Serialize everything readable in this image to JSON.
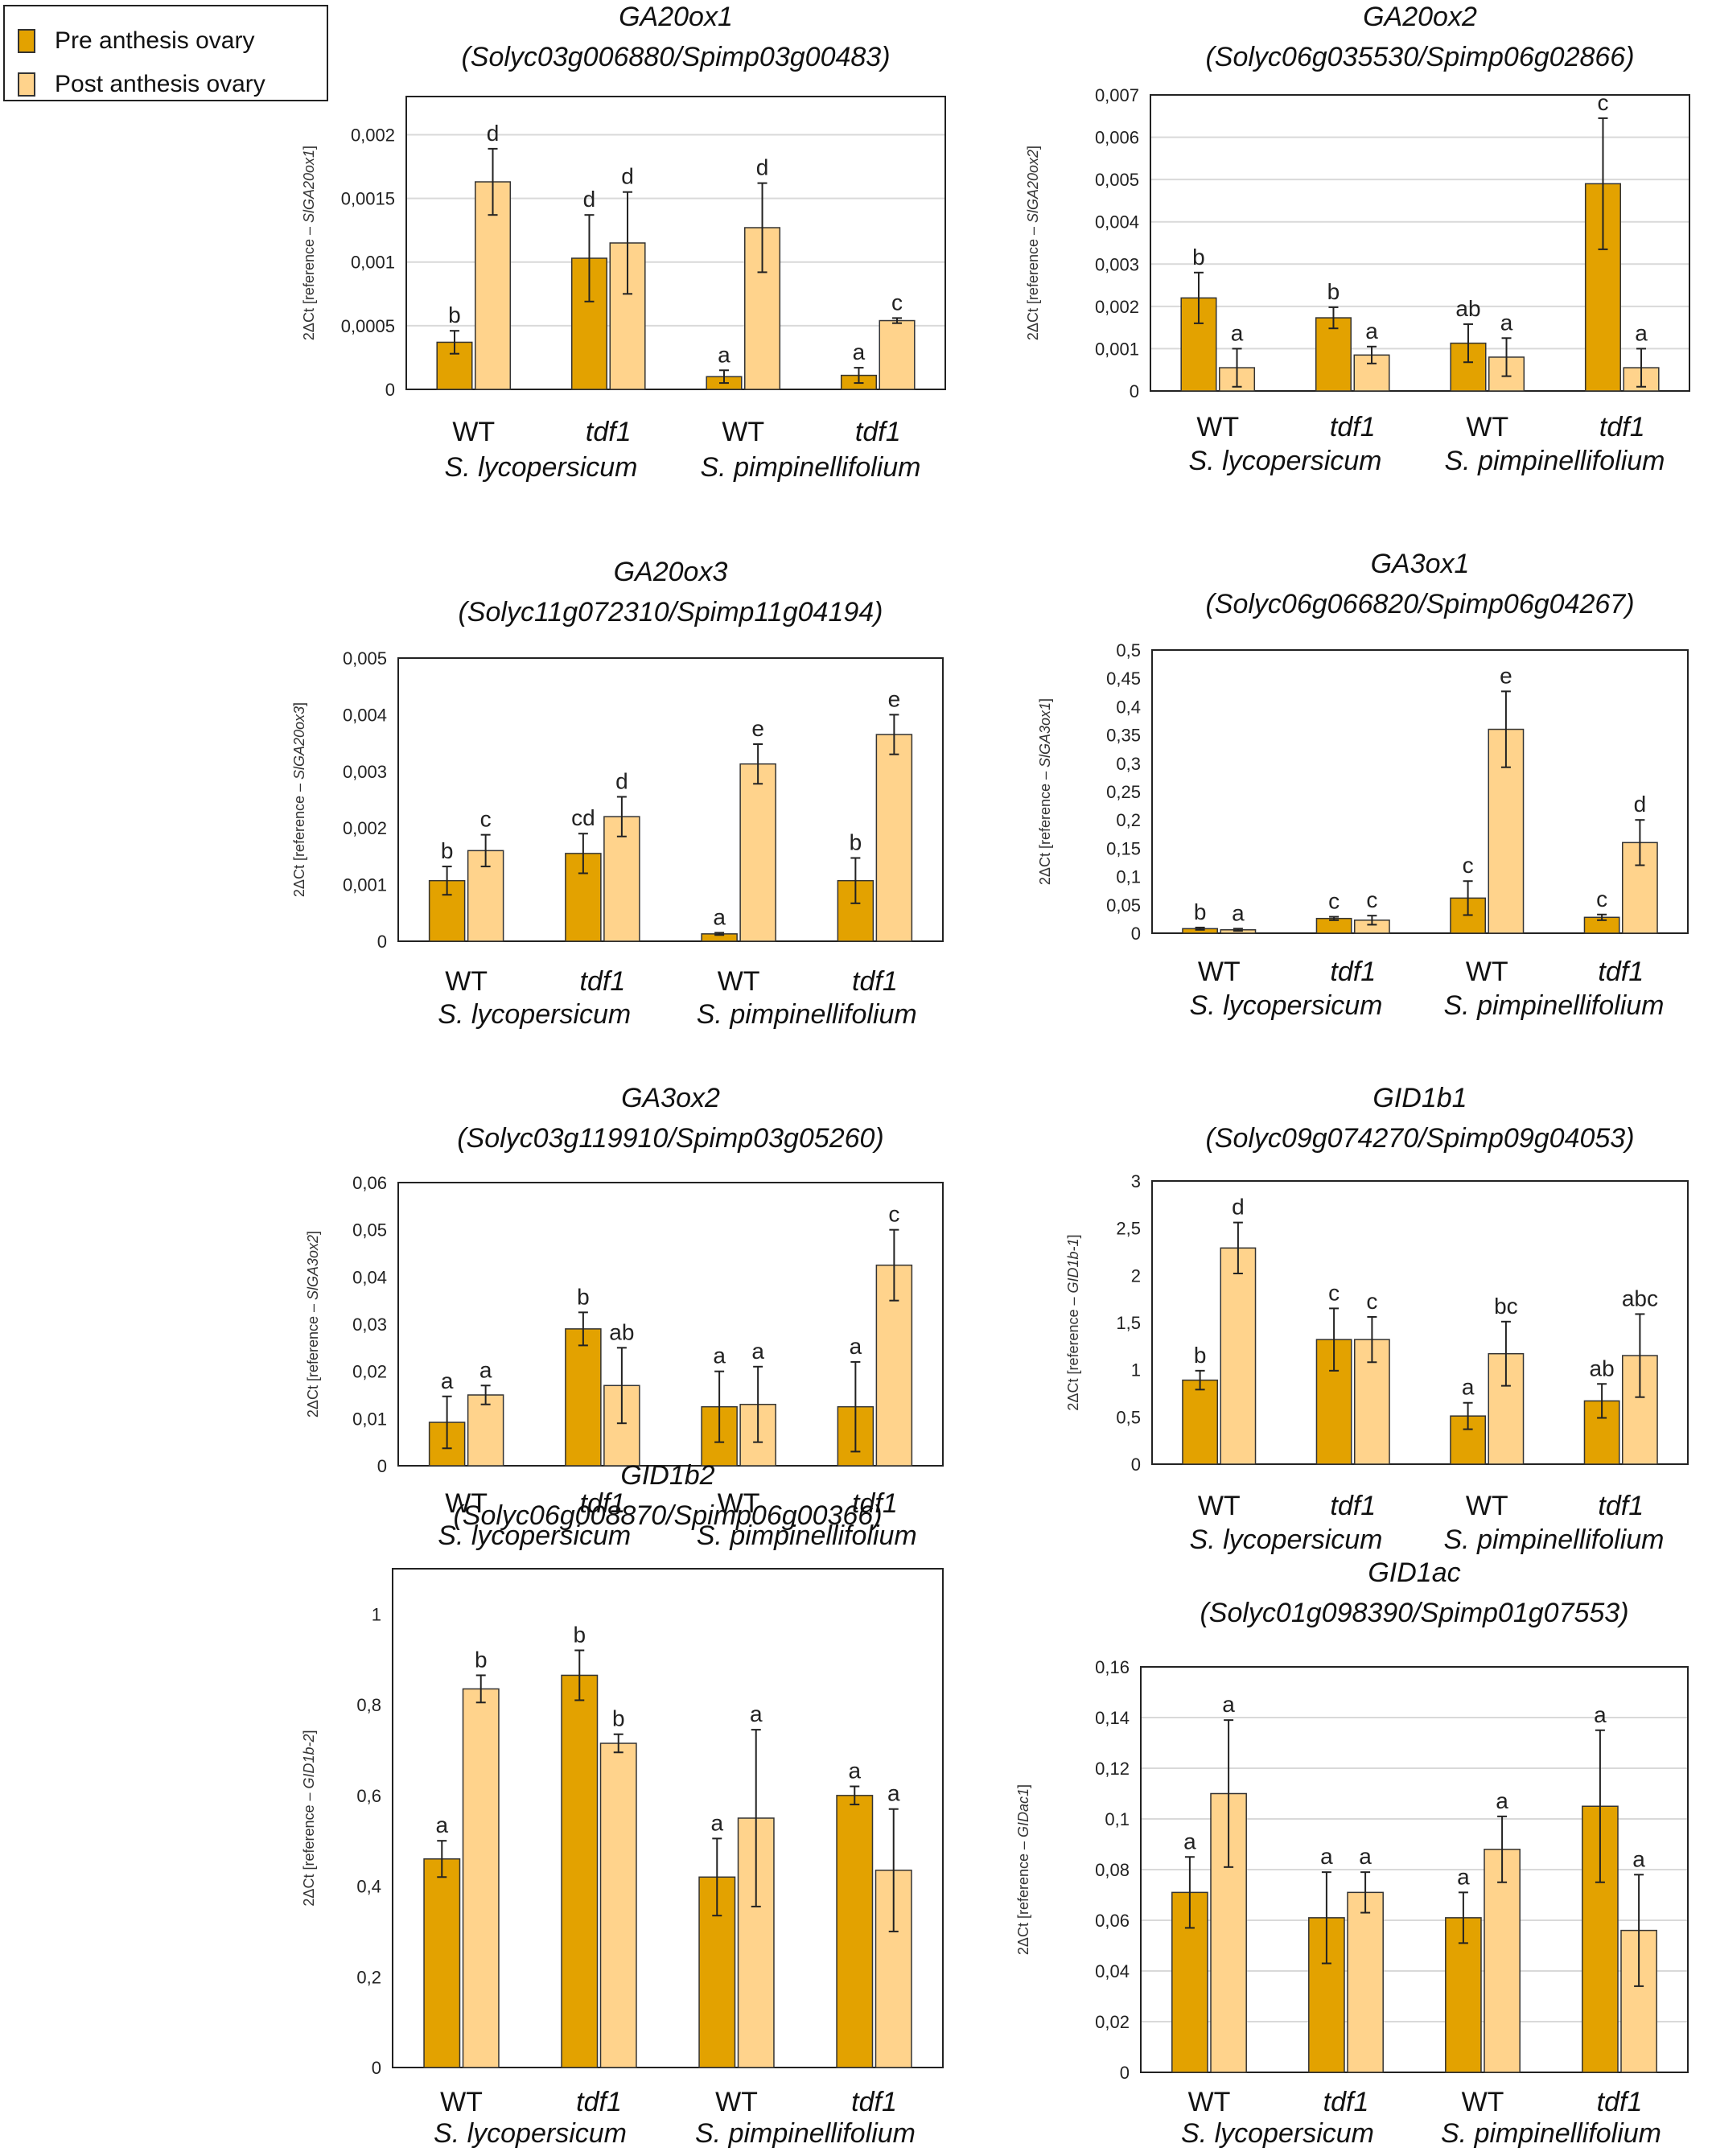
{
  "legend": {
    "items": [
      {
        "label": "Pre anthesis ovary",
        "color": "#E3A200"
      },
      {
        "label": "Post anthesis ovary",
        "color": "#FFD38C"
      }
    ]
  },
  "colors": {
    "pre": "#E3A200",
    "post": "#FFD38C",
    "edge": "#333333",
    "grid": "#d9d9d9"
  },
  "chart_data": [
    {
      "type": "bar",
      "title": "GA20ox1",
      "subtitle": "(Solyc03g006880/Spimp03g00483)",
      "ylabel_prefix": "2ΔCt [reference – ",
      "ylabel_gene": "SlGA20ox1",
      "ylabel_suffix": "]",
      "ylim": [
        0,
        0.0023
      ],
      "ticks": [
        "0",
        "0,0005",
        "0,001",
        "0,0015",
        "0,002"
      ],
      "tick_values": [
        0,
        0.0005,
        0.001,
        0.0015,
        0.002
      ],
      "grid": true,
      "categories": [
        "WT",
        "tdf1",
        "WT",
        "tdf1"
      ],
      "species": [
        "S. lycopersicum",
        "S. pimpinellifolium"
      ],
      "series": [
        {
          "name": "Pre anthesis ovary",
          "values": [
            0.00037,
            0.00103,
            0.0001,
            0.00011
          ],
          "errors": [
            9e-05,
            0.00034,
            5e-05,
            6e-05
          ],
          "letters": [
            "b",
            "d",
            "a",
            "a"
          ]
        },
        {
          "name": "Post anthesis ovary",
          "values": [
            0.00163,
            0.00115,
            0.00127,
            0.00054
          ],
          "errors": [
            0.00026,
            0.0004,
            0.00035,
            2e-05
          ],
          "letters": [
            "d",
            "d",
            "d",
            "c"
          ]
        }
      ]
    },
    {
      "type": "bar",
      "title": "GA20ox2",
      "subtitle": "(Solyc06g035530/Spimp06g02866)",
      "ylabel_prefix": "2ΔCt [reference – ",
      "ylabel_gene": "SlGA20ox2",
      "ylabel_suffix": "]",
      "ylim": [
        0,
        0.007
      ],
      "ticks": [
        "0",
        "0,001",
        "0,002",
        "0,003",
        "0,004",
        "0,005",
        "0,006",
        "0,007"
      ],
      "tick_values": [
        0,
        0.001,
        0.002,
        0.003,
        0.004,
        0.005,
        0.006,
        0.007
      ],
      "grid": true,
      "categories": [
        "WT",
        "tdf1",
        "WT",
        "tdf1"
      ],
      "species": [
        "S. lycopersicum",
        "S. pimpinellifolium"
      ],
      "series": [
        {
          "name": "Pre anthesis ovary",
          "values": [
            0.0022,
            0.00173,
            0.00113,
            0.0049
          ],
          "errors": [
            0.0006,
            0.00025,
            0.00045,
            0.00155
          ],
          "letters": [
            "b",
            "b",
            "ab",
            "c"
          ]
        },
        {
          "name": "Post anthesis ovary",
          "values": [
            0.00055,
            0.00085,
            0.0008,
            0.00055
          ],
          "errors": [
            0.00045,
            0.0002,
            0.00045,
            0.00045
          ],
          "letters": [
            "a",
            "a",
            "a",
            "a"
          ]
        }
      ]
    },
    {
      "type": "bar",
      "title": "GA20ox3",
      "subtitle": "(Solyc11g072310/Spimp11g04194)",
      "ylabel_prefix": "2ΔCt [reference – ",
      "ylabel_gene": "SlGA20ox3",
      "ylabel_suffix": "]",
      "ylim": [
        0,
        0.005
      ],
      "ticks": [
        "0",
        "0,001",
        "0,002",
        "0,003",
        "0,004",
        "0,005"
      ],
      "tick_values": [
        0,
        0.001,
        0.002,
        0.003,
        0.004,
        0.005
      ],
      "grid": false,
      "categories": [
        "WT",
        "tdf1",
        "WT",
        "tdf1"
      ],
      "species": [
        "S. lycopersicum",
        "S. pimpinellifolium"
      ],
      "series": [
        {
          "name": "Pre anthesis ovary",
          "values": [
            0.00107,
            0.00155,
            0.00013,
            0.00107
          ],
          "errors": [
            0.00025,
            0.00035,
            2e-05,
            0.0004
          ],
          "letters": [
            "b",
            "cd",
            "a",
            "b"
          ]
        },
        {
          "name": "Post anthesis ovary",
          "values": [
            0.0016,
            0.0022,
            0.00313,
            0.00365
          ],
          "errors": [
            0.00028,
            0.00035,
            0.00035,
            0.00035
          ],
          "letters": [
            "c",
            "d",
            "e",
            "e"
          ]
        }
      ]
    },
    {
      "type": "bar",
      "title": "GA3ox1",
      "subtitle": "(Solyc06g066820/Spimp06g04267)",
      "ylabel_prefix": "2ΔCt [reference – ",
      "ylabel_gene": "SlGA3ox1",
      "ylabel_suffix": "]",
      "ylim": [
        0,
        0.5
      ],
      "ticks": [
        "0",
        "0,05",
        "0,1",
        "0,15",
        "0,2",
        "0,25",
        "0,3",
        "0,35",
        "0,4",
        "0,45",
        "0,5"
      ],
      "tick_values": [
        0,
        0.05,
        0.1,
        0.15,
        0.2,
        0.25,
        0.3,
        0.35,
        0.4,
        0.45,
        0.5
      ],
      "grid": false,
      "categories": [
        "WT",
        "tdf1",
        "WT",
        "tdf1"
      ],
      "species": [
        "S. lycopersicum",
        "S. pimpinellifolium"
      ],
      "series": [
        {
          "name": "Pre anthesis ovary",
          "values": [
            0.008,
            0.026,
            0.062,
            0.028
          ],
          "errors": [
            0.002,
            0.003,
            0.03,
            0.005
          ],
          "letters": [
            "b",
            "c",
            "c",
            "c"
          ]
        },
        {
          "name": "Post anthesis ovary",
          "values": [
            0.006,
            0.023,
            0.36,
            0.16
          ],
          "errors": [
            0.002,
            0.008,
            0.067,
            0.04
          ],
          "letters": [
            "a",
            "c",
            "e",
            "d"
          ]
        }
      ]
    },
    {
      "type": "bar",
      "title": "GA3ox2",
      "subtitle": "(Solyc03g119910/Spimp03g05260)",
      "ylabel_prefix": "2ΔCt [reference – ",
      "ylabel_gene": "SlGA3ox2",
      "ylabel_suffix": "]",
      "ylim": [
        0,
        0.06
      ],
      "ticks": [
        "0",
        "0,01",
        "0,02",
        "0,03",
        "0,04",
        "0,05",
        "0,06"
      ],
      "tick_values": [
        0,
        0.01,
        0.02,
        0.03,
        0.04,
        0.05,
        0.06
      ],
      "grid": false,
      "categories": [
        "WT",
        "tdf1",
        "WT",
        "tdf1"
      ],
      "species": [
        "S. lycopersicum",
        "S. pimpinellifolium"
      ],
      "series": [
        {
          "name": "Pre anthesis ovary",
          "values": [
            0.0092,
            0.029,
            0.0125,
            0.0125
          ],
          "errors": [
            0.0055,
            0.0035,
            0.0075,
            0.0095
          ],
          "letters": [
            "a",
            "b",
            "a",
            "a"
          ]
        },
        {
          "name": "Post anthesis ovary",
          "values": [
            0.015,
            0.017,
            0.013,
            0.0425
          ],
          "errors": [
            0.002,
            0.008,
            0.008,
            0.0075
          ],
          "letters": [
            "a",
            "ab",
            "a",
            "c"
          ]
        }
      ]
    },
    {
      "type": "bar",
      "title": "GID1b1",
      "subtitle": "(Solyc09g074270/Spimp09g04053)",
      "ylabel_prefix": "2ΔCt [reference – ",
      "ylabel_gene": "GID1b-1",
      "ylabel_suffix": "]",
      "ylim": [
        0,
        3
      ],
      "ticks": [
        "0",
        "0,5",
        "1",
        "1,5",
        "2",
        "2,5",
        "3"
      ],
      "tick_values": [
        0,
        0.5,
        1,
        1.5,
        2,
        2.5,
        3
      ],
      "grid": false,
      "categories": [
        "WT",
        "tdf1",
        "WT",
        "tdf1"
      ],
      "species": [
        "S. lycopersicum",
        "S. pimpinellifolium"
      ],
      "series": [
        {
          "name": "Pre anthesis ovary",
          "values": [
            0.89,
            1.32,
            0.51,
            0.67
          ],
          "errors": [
            0.1,
            0.33,
            0.14,
            0.18
          ],
          "letters": [
            "b",
            "c",
            "a",
            "ab"
          ]
        },
        {
          "name": "Post anthesis ovary",
          "values": [
            2.29,
            1.32,
            1.17,
            1.15
          ],
          "errors": [
            0.27,
            0.24,
            0.34,
            0.44
          ],
          "letters": [
            "d",
            "c",
            "bc",
            "abc"
          ]
        }
      ]
    },
    {
      "type": "bar",
      "title": "GID1b2",
      "subtitle": "(Solyc06g008870/Spimp06g00366)",
      "ylabel_prefix": "2ΔCt [reference – ",
      "ylabel_gene": "GID1b-2",
      "ylabel_suffix": "]",
      "ylim": [
        0,
        1.1
      ],
      "ticks": [
        "0",
        "0,2",
        "0,4",
        "0,6",
        "0,8",
        "1"
      ],
      "tick_values": [
        0,
        0.2,
        0.4,
        0.6,
        0.8,
        1
      ],
      "grid": false,
      "categories": [
        "WT",
        "tdf1",
        "WT",
        "tdf1"
      ],
      "species": [
        "S. lycopersicum",
        "S. pimpinellifolium"
      ],
      "series": [
        {
          "name": "Pre anthesis ovary",
          "values": [
            0.46,
            0.865,
            0.42,
            0.6
          ],
          "errors": [
            0.04,
            0.055,
            0.085,
            0.02
          ],
          "letters": [
            "a",
            "b",
            "a",
            "a"
          ]
        },
        {
          "name": "Post anthesis ovary",
          "values": [
            0.835,
            0.715,
            0.55,
            0.435
          ],
          "errors": [
            0.03,
            0.02,
            0.195,
            0.135
          ],
          "letters": [
            "b",
            "b",
            "a",
            "a"
          ]
        }
      ]
    },
    {
      "type": "bar",
      "title": "GID1ac",
      "subtitle": "(Solyc01g098390/Spimp01g07553)",
      "ylabel_prefix": "2ΔCt [reference – ",
      "ylabel_gene": "GIDac1",
      "ylabel_suffix": "]",
      "ylim": [
        0,
        0.16
      ],
      "ticks": [
        "0",
        "0,02",
        "0,04",
        "0,06",
        "0,08",
        "0,1",
        "0,12",
        "0,14",
        "0,16"
      ],
      "tick_values": [
        0,
        0.02,
        0.04,
        0.06,
        0.08,
        0.1,
        0.12,
        0.14,
        0.16
      ],
      "grid": true,
      "categories": [
        "WT",
        "tdf1",
        "WT",
        "tdf1"
      ],
      "species": [
        "S. lycopersicum",
        "S. pimpinellifolium"
      ],
      "series": [
        {
          "name": "Pre anthesis ovary",
          "values": [
            0.071,
            0.061,
            0.061,
            0.105
          ],
          "errors": [
            0.014,
            0.018,
            0.01,
            0.03
          ],
          "letters": [
            "a",
            "a",
            "a",
            "a"
          ]
        },
        {
          "name": "Post anthesis ovary",
          "values": [
            0.11,
            0.071,
            0.088,
            0.056
          ],
          "errors": [
            0.029,
            0.008,
            0.013,
            0.022
          ],
          "letters": [
            "a",
            "a",
            "a",
            "a"
          ]
        }
      ]
    }
  ]
}
